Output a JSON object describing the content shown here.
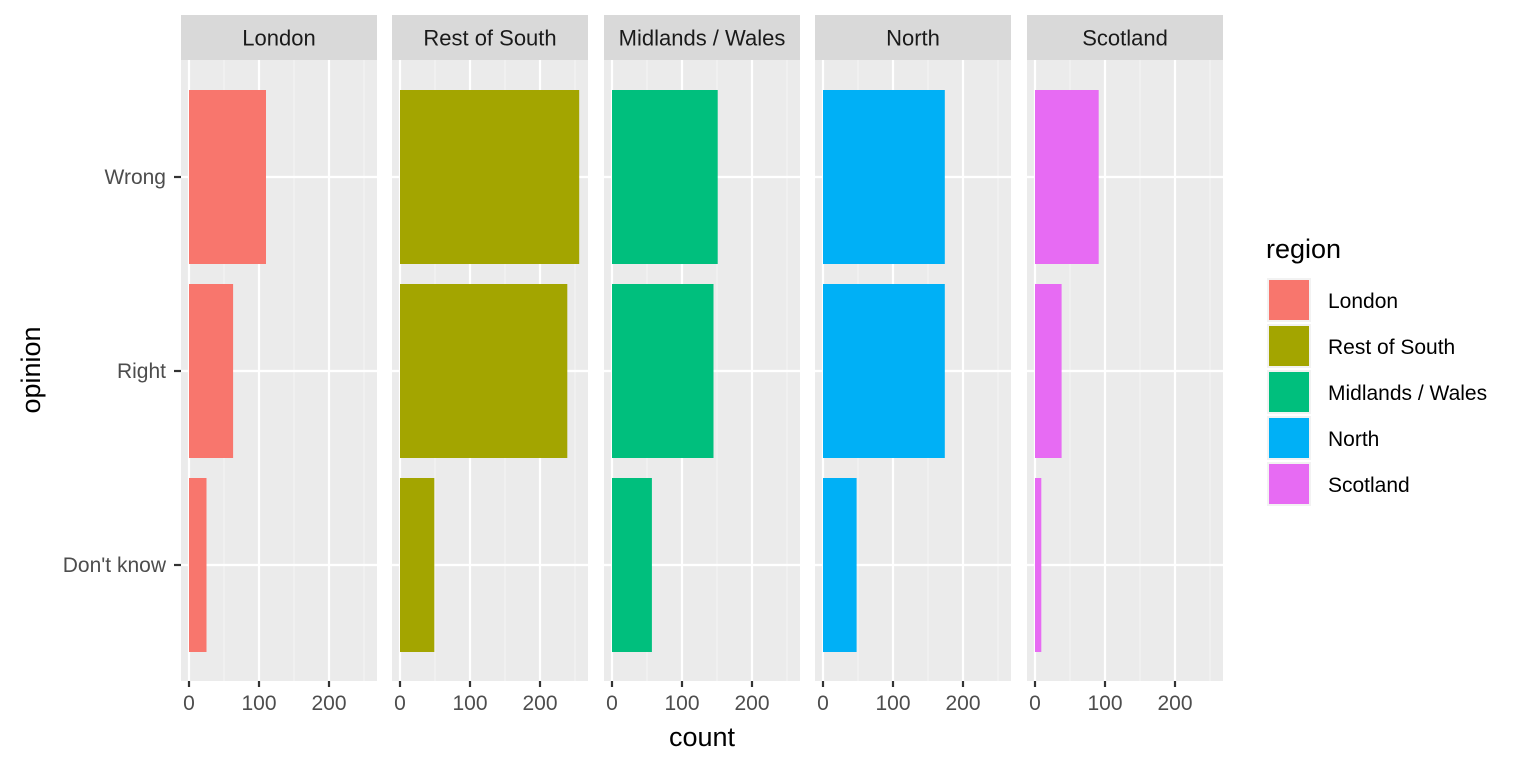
{
  "chart_data": {
    "type": "bar",
    "orientation": "horizontal",
    "faceted_by": "region",
    "categories": [
      "Don't know",
      "Right",
      "Wrong"
    ],
    "x_ticks": [
      0,
      100,
      200
    ],
    "xlim": [
      -10,
      270
    ],
    "xlabel": "count",
    "ylabel": "opinion",
    "grid": true,
    "legend": {
      "title": "region",
      "position": "right",
      "items": [
        {
          "label": "London",
          "color": "#F8766D"
        },
        {
          "label": "Rest of South",
          "color": "#A3A500"
        },
        {
          "label": "Midlands / Wales",
          "color": "#00BF7D"
        },
        {
          "label": "North",
          "color": "#00B0F6"
        },
        {
          "label": "Scotland",
          "color": "#E76BF3"
        }
      ]
    },
    "series": [
      {
        "name": "London",
        "color": "#F8766D",
        "values": [
          25,
          63,
          110
        ]
      },
      {
        "name": "Rest of South",
        "color": "#A3A500",
        "values": [
          49,
          239,
          256
        ]
      },
      {
        "name": "Midlands / Wales",
        "color": "#00BF7D",
        "values": [
          57,
          145,
          151
        ]
      },
      {
        "name": "North",
        "color": "#00B0F6",
        "values": [
          48,
          174,
          174
        ]
      },
      {
        "name": "Scotland",
        "color": "#E76BF3",
        "values": [
          9,
          38,
          91
        ]
      }
    ]
  }
}
